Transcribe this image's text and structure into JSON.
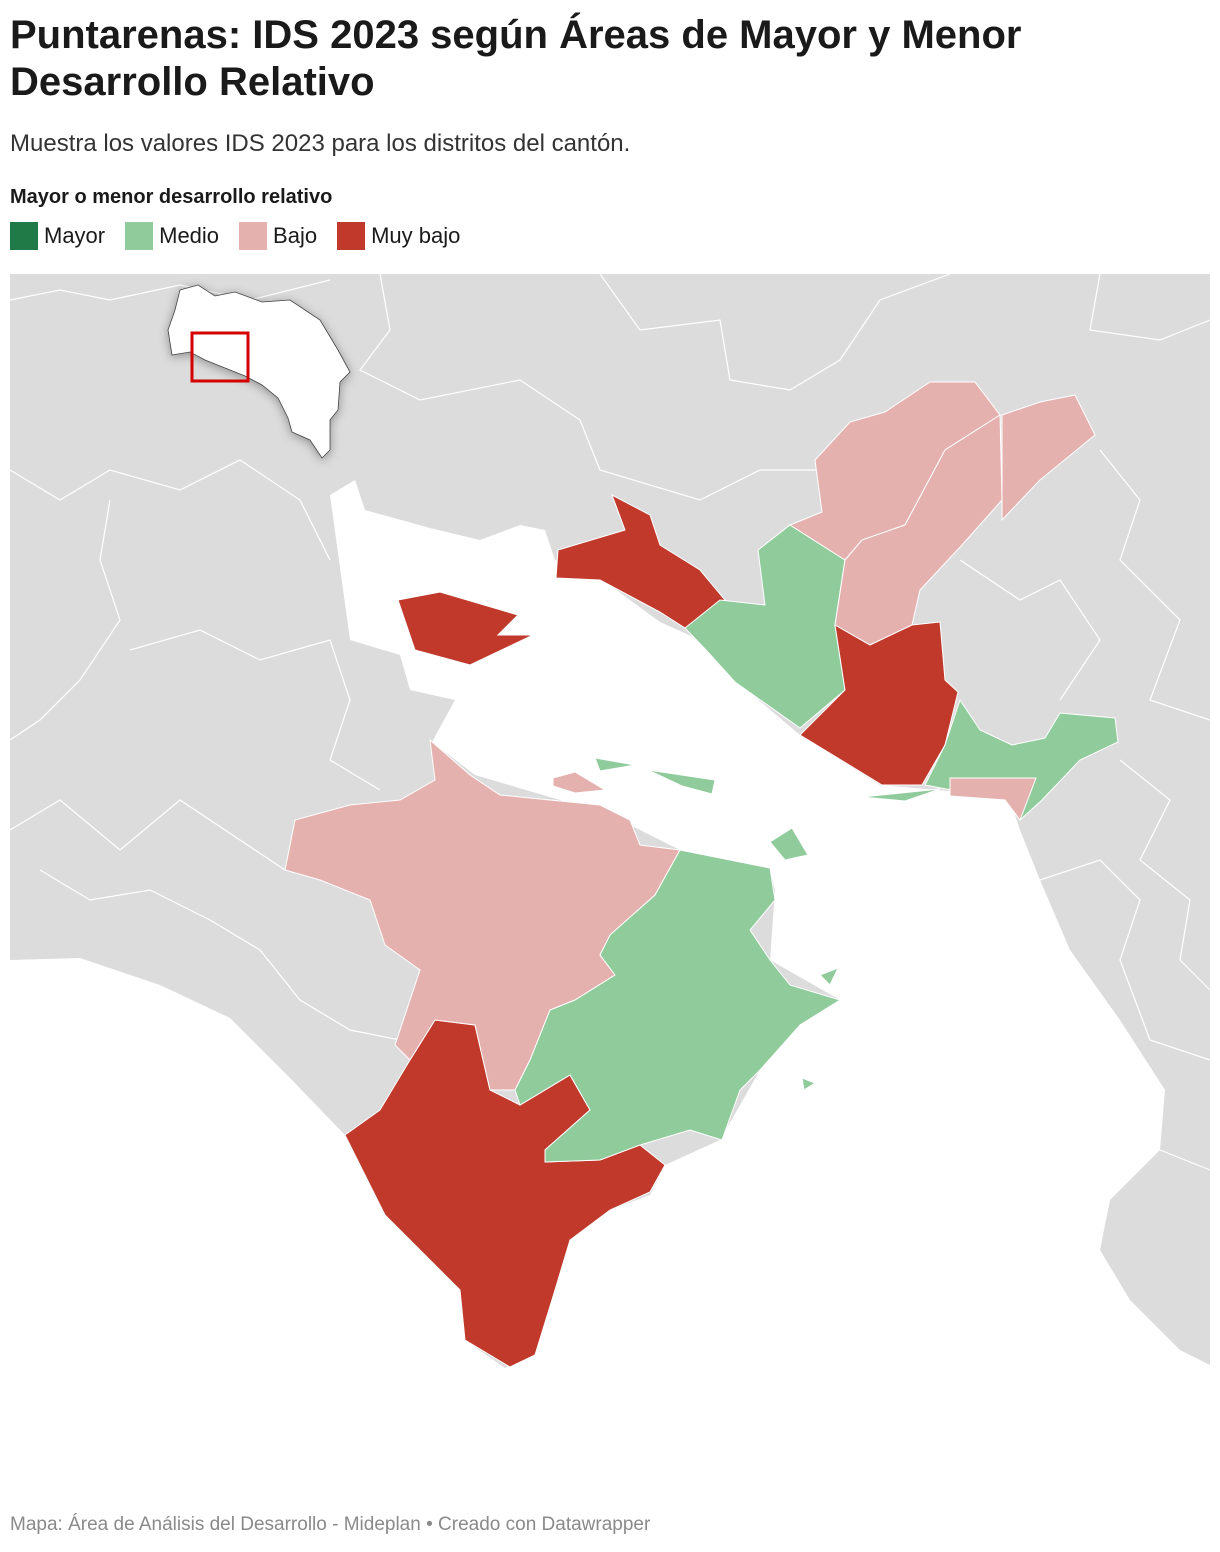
{
  "header": {
    "title": "Puntarenas: IDS 2023 según Áreas de Mayor y Menor Desarrollo Relativo",
    "subtitle": "Muestra los valores IDS 2023 para los distritos del cantón."
  },
  "legend": {
    "title": "Mayor o menor desarrollo relativo",
    "items": [
      {
        "label": "Mayor",
        "color": "#1f7a47"
      },
      {
        "label": "Medio",
        "color": "#8fcb9b"
      },
      {
        "label": "Bajo",
        "color": "#e4b1af"
      },
      {
        "label": "Muy bajo",
        "color": "#c0392b"
      }
    ]
  },
  "footer": "Mapa: Área de Análisis del Desarrollo - Mideplan • Creado con Datawrapper"
}
